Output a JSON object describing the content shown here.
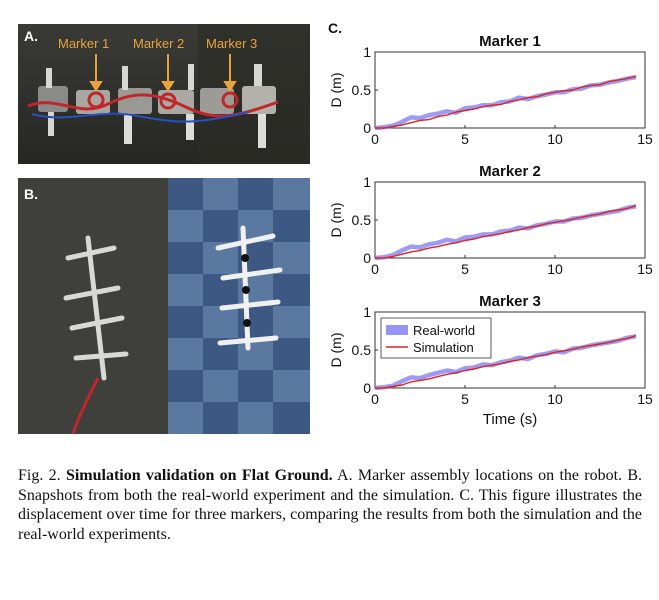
{
  "panel_a": {
    "letter": "A.",
    "markers": [
      "Marker 1",
      "Marker 2",
      "Marker 3"
    ]
  },
  "panel_b": {
    "letter": "B."
  },
  "panel_c": {
    "letter": "C."
  },
  "legend": {
    "real": "Real-world",
    "sim": "Simulation"
  },
  "colors": {
    "real": "#7b7bf0",
    "sim": "#e02222",
    "marker_text": "#e8a33c"
  },
  "chart_data": [
    {
      "type": "line",
      "title": "Marker 1",
      "xlabel": "",
      "ylabel": "D (m)",
      "xlim": [
        0,
        15
      ],
      "ylim": [
        0,
        1
      ],
      "xticks": [
        0,
        5,
        10,
        15
      ],
      "yticks": [
        0,
        0.5,
        1
      ],
      "grid": false,
      "series": [
        {
          "name": "Real-world",
          "x": [
            0,
            0.5,
            1,
            1.5,
            2,
            2.5,
            3,
            3.5,
            4,
            4.5,
            5,
            5.5,
            6,
            6.5,
            7,
            7.5,
            8,
            8.5,
            9,
            9.5,
            10,
            10.5,
            11,
            11.5,
            12,
            12.5,
            13,
            13.5,
            14,
            14.5
          ],
          "y": [
            0,
            0.01,
            0.03,
            0.08,
            0.14,
            0.13,
            0.17,
            0.19,
            0.22,
            0.2,
            0.26,
            0.27,
            0.3,
            0.3,
            0.34,
            0.35,
            0.4,
            0.38,
            0.42,
            0.44,
            0.47,
            0.47,
            0.51,
            0.52,
            0.56,
            0.57,
            0.6,
            0.62,
            0.65,
            0.67
          ]
        },
        {
          "name": "Simulation",
          "x": [
            0,
            0.5,
            1,
            1.5,
            2,
            2.5,
            3,
            3.5,
            4,
            4.5,
            5,
            5.5,
            6,
            6.5,
            7,
            7.5,
            8,
            8.5,
            9,
            9.5,
            10,
            10.5,
            11,
            11.5,
            12,
            12.5,
            13,
            13.5,
            14,
            14.5
          ],
          "y": [
            0,
            0,
            0.02,
            0.04,
            0.07,
            0.1,
            0.11,
            0.15,
            0.17,
            0.21,
            0.23,
            0.25,
            0.28,
            0.3,
            0.31,
            0.35,
            0.37,
            0.4,
            0.41,
            0.45,
            0.47,
            0.49,
            0.5,
            0.54,
            0.56,
            0.57,
            0.61,
            0.63,
            0.65,
            0.68
          ]
        }
      ]
    },
    {
      "type": "line",
      "title": "Marker 2",
      "xlabel": "",
      "ylabel": "D (m)",
      "xlim": [
        0,
        15
      ],
      "ylim": [
        0,
        1
      ],
      "xticks": [
        0,
        5,
        10,
        15
      ],
      "yticks": [
        0,
        0.5,
        1
      ],
      "grid": false,
      "series": [
        {
          "name": "Real-world",
          "x": [
            0,
            0.5,
            1,
            1.5,
            2,
            2.5,
            3,
            3.5,
            4,
            4.5,
            5,
            5.5,
            6,
            6.5,
            7,
            7.5,
            8,
            8.5,
            9,
            9.5,
            10,
            10.5,
            11,
            11.5,
            12,
            12.5,
            13,
            13.5,
            14,
            14.5
          ],
          "y": [
            0,
            0.01,
            0.04,
            0.1,
            0.15,
            0.14,
            0.18,
            0.2,
            0.24,
            0.22,
            0.27,
            0.28,
            0.31,
            0.31,
            0.35,
            0.36,
            0.4,
            0.39,
            0.43,
            0.45,
            0.48,
            0.48,
            0.52,
            0.53,
            0.56,
            0.58,
            0.6,
            0.62,
            0.66,
            0.68
          ]
        },
        {
          "name": "Simulation",
          "x": [
            0,
            0.5,
            1,
            1.5,
            2,
            2.5,
            3,
            3.5,
            4,
            4.5,
            5,
            5.5,
            6,
            6.5,
            7,
            7.5,
            8,
            8.5,
            9,
            9.5,
            10,
            10.5,
            11,
            11.5,
            12,
            12.5,
            13,
            13.5,
            14,
            14.5
          ],
          "y": [
            0,
            0,
            0.02,
            0.05,
            0.08,
            0.1,
            0.13,
            0.15,
            0.18,
            0.2,
            0.23,
            0.25,
            0.28,
            0.3,
            0.32,
            0.35,
            0.37,
            0.4,
            0.42,
            0.45,
            0.47,
            0.49,
            0.51,
            0.54,
            0.56,
            0.58,
            0.61,
            0.63,
            0.65,
            0.69
          ]
        }
      ]
    },
    {
      "type": "line",
      "title": "Marker 3",
      "xlabel": "Time (s)",
      "ylabel": "D (m)",
      "xlim": [
        0,
        15
      ],
      "ylim": [
        0,
        1
      ],
      "xticks": [
        0,
        5,
        10,
        15
      ],
      "yticks": [
        0,
        0.5,
        1
      ],
      "grid": false,
      "legend": "top-left",
      "series": [
        {
          "name": "Real-world",
          "x": [
            0,
            0.5,
            1,
            1.5,
            2,
            2.5,
            3,
            3.5,
            4,
            4.5,
            5,
            5.5,
            6,
            6.5,
            7,
            7.5,
            8,
            8.5,
            9,
            9.5,
            10,
            10.5,
            11,
            11.5,
            12,
            12.5,
            13,
            13.5,
            14,
            14.5
          ],
          "y": [
            0,
            0.01,
            0.03,
            0.09,
            0.14,
            0.13,
            0.17,
            0.2,
            0.23,
            0.21,
            0.26,
            0.27,
            0.31,
            0.3,
            0.34,
            0.36,
            0.4,
            0.38,
            0.43,
            0.45,
            0.48,
            0.47,
            0.52,
            0.53,
            0.56,
            0.58,
            0.6,
            0.62,
            0.66,
            0.68
          ]
        },
        {
          "name": "Simulation",
          "x": [
            0,
            0.5,
            1,
            1.5,
            2,
            2.5,
            3,
            3.5,
            4,
            4.5,
            5,
            5.5,
            6,
            6.5,
            7,
            7.5,
            8,
            8.5,
            9,
            9.5,
            10,
            10.5,
            11,
            11.5,
            12,
            12.5,
            13,
            13.5,
            14,
            14.5
          ],
          "y": [
            0,
            0,
            0.02,
            0.04,
            0.08,
            0.1,
            0.12,
            0.15,
            0.18,
            0.2,
            0.23,
            0.25,
            0.28,
            0.3,
            0.32,
            0.35,
            0.37,
            0.4,
            0.42,
            0.44,
            0.47,
            0.49,
            0.51,
            0.54,
            0.56,
            0.58,
            0.6,
            0.63,
            0.65,
            0.69
          ]
        }
      ]
    }
  ],
  "caption": {
    "label": "Fig. 2.",
    "title": "Simulation validation on Flat Ground.",
    "body": "A. Marker assembly locations on the robot. B. Snapshots from both the real-world experiment and the simulation. C. This figure illustrates the displacement over time for three markers, comparing the results from both the simulation and the real-world experiments."
  }
}
